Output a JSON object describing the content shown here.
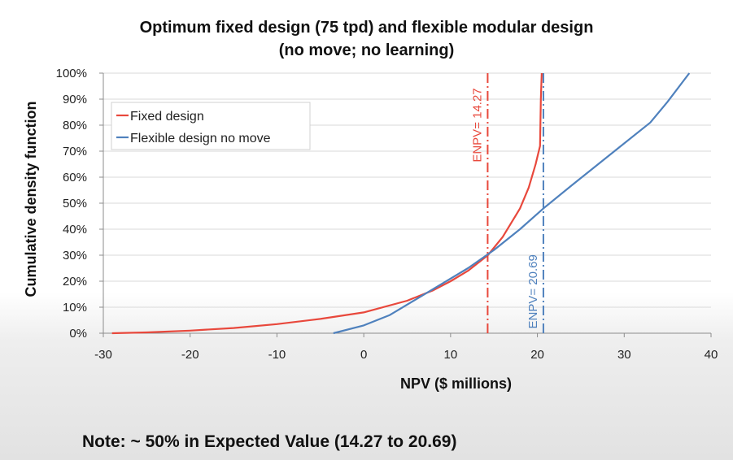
{
  "chart_data": {
    "type": "line",
    "title_line1": "Optimum fixed design (75 tpd) and flexible modular design",
    "title_line2": "(no move; no learning)",
    "xlabel": "NPV ($ millions)",
    "ylabel": "Cumulative density function",
    "xlim": [
      -30,
      40
    ],
    "ylim": [
      0,
      100
    ],
    "x_ticks": [
      "-30",
      "-20",
      "-10",
      "0",
      "10",
      "20",
      "30",
      "40"
    ],
    "y_ticks": [
      "0%",
      "10%",
      "20%",
      "30%",
      "40%",
      "50%",
      "60%",
      "70%",
      "80%",
      "90%",
      "100%"
    ],
    "grid": "horizontal",
    "legend_position": "top-left",
    "series": [
      {
        "name": "Fixed design",
        "color": "#e8483c",
        "x": [
          -29,
          -25,
          -20,
          -15,
          -10,
          -5,
          0,
          5,
          8,
          10,
          12,
          14.3,
          16,
          18,
          19,
          19.8,
          20.3,
          20.4,
          20.5
        ],
        "y": [
          0,
          0.3,
          1,
          2,
          3.5,
          5.5,
          8,
          12.5,
          16.5,
          20,
          24,
          30,
          37,
          48,
          56,
          65,
          72,
          90,
          100
        ]
      },
      {
        "name": "Flexible design no move",
        "color": "#4f81bd",
        "x": [
          -3.5,
          0,
          3,
          6,
          9,
          12,
          15,
          18,
          20.7,
          24,
          27,
          30,
          33,
          35,
          37.5
        ],
        "y": [
          0,
          3,
          7,
          13,
          19,
          25,
          32,
          40,
          48,
          57,
          65,
          73,
          81,
          89,
          100
        ]
      }
    ],
    "annotations": [
      {
        "label": "ENPV= 14.27",
        "x": 14.27,
        "color": "#e8483c"
      },
      {
        "label": "ENPV= 20.69",
        "x": 20.69,
        "color": "#4f81bd"
      }
    ]
  },
  "note": "Note:  ~ 50% in Expected Value (14.27 to 20.69)"
}
